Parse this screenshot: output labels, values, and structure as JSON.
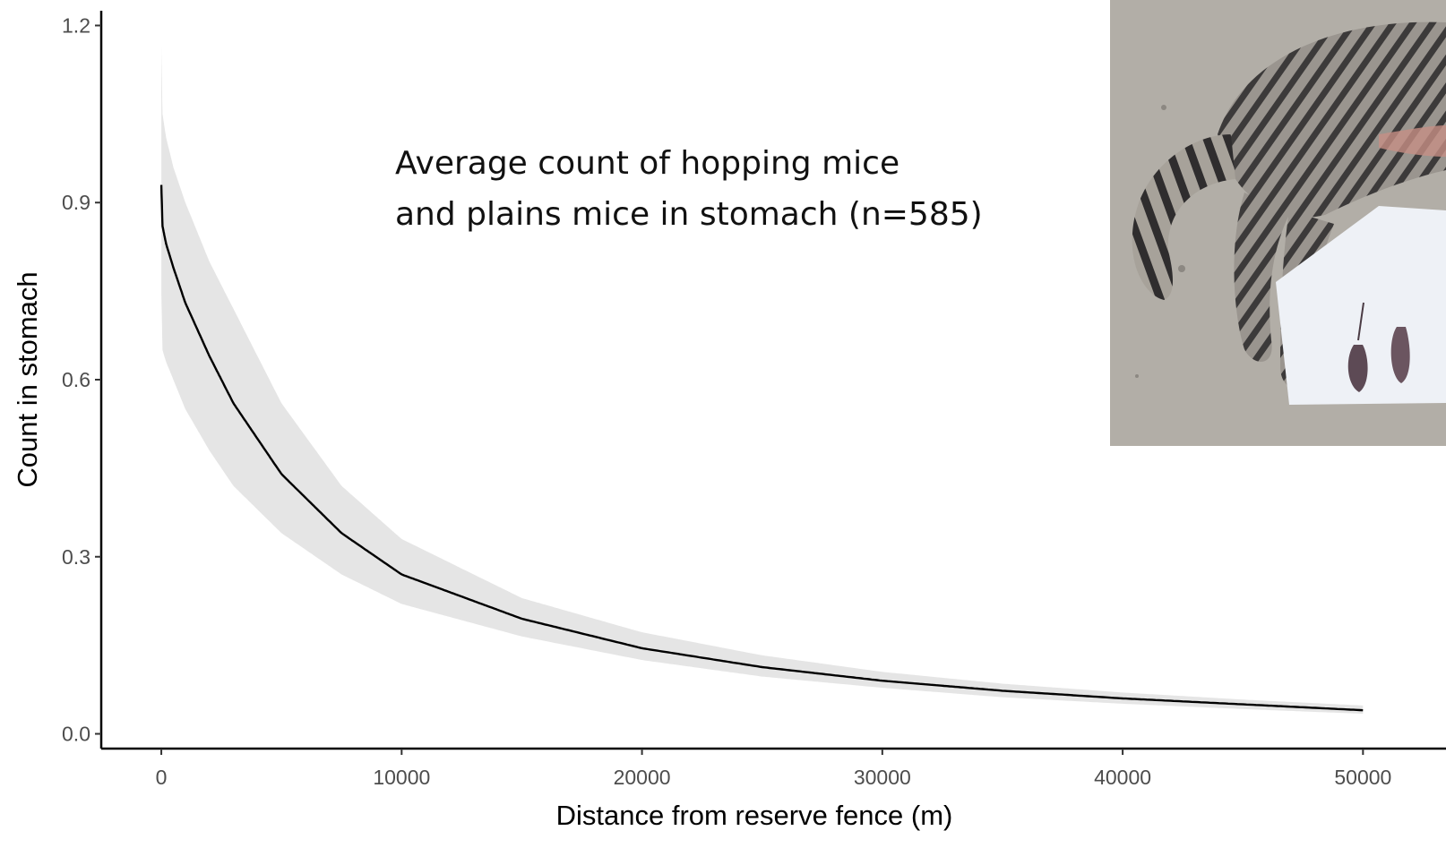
{
  "chart_data": {
    "type": "line",
    "title": "",
    "annotation": {
      "lines": [
        "Average count of hopping mice",
        "and plains mice in stomach (n=585)"
      ]
    },
    "xlabel": "Distance from reserve fence (m)",
    "ylabel": "Count in stomach",
    "xlim": [
      -2500,
      52000
    ],
    "ylim": [
      -0.025,
      1.225
    ],
    "x_ticks": [
      0,
      10000,
      20000,
      30000,
      40000,
      50000
    ],
    "x_tick_labels": [
      "0",
      "10000",
      "20000",
      "30000",
      "40000",
      "50000"
    ],
    "y_ticks": [
      0.0,
      0.3,
      0.6,
      0.9,
      1.2
    ],
    "y_tick_labels": [
      "0.0",
      "0.3",
      "0.6",
      "0.9",
      "1.2"
    ],
    "grid": false,
    "legend": "none",
    "colors": {
      "line": "#000000",
      "ribbon": "#e5e5e5",
      "axis": "#000000"
    },
    "series": [
      {
        "x": [
          0,
          50,
          200,
          500,
          1000,
          2000,
          3000,
          5000,
          7500,
          10000,
          15000,
          20000,
          25000,
          30000,
          35000,
          40000,
          45000,
          50000
        ],
        "y": [
          0.93,
          0.86,
          0.83,
          0.79,
          0.73,
          0.64,
          0.56,
          0.44,
          0.34,
          0.27,
          0.195,
          0.145,
          0.113,
          0.09,
          0.073,
          0.06,
          0.05,
          0.04
        ],
        "lower": [
          0.75,
          0.65,
          0.63,
          0.6,
          0.55,
          0.48,
          0.42,
          0.34,
          0.27,
          0.22,
          0.165,
          0.125,
          0.097,
          0.078,
          0.062,
          0.051,
          0.042,
          0.034
        ],
        "upper": [
          1.17,
          1.05,
          1.01,
          0.96,
          0.9,
          0.8,
          0.72,
          0.56,
          0.42,
          0.33,
          0.23,
          0.172,
          0.133,
          0.105,
          0.085,
          0.07,
          0.058,
          0.048
        ]
      }
    ]
  },
  "photo": {
    "subject": "tabby-cat-with-stomach-contents-photo"
  }
}
